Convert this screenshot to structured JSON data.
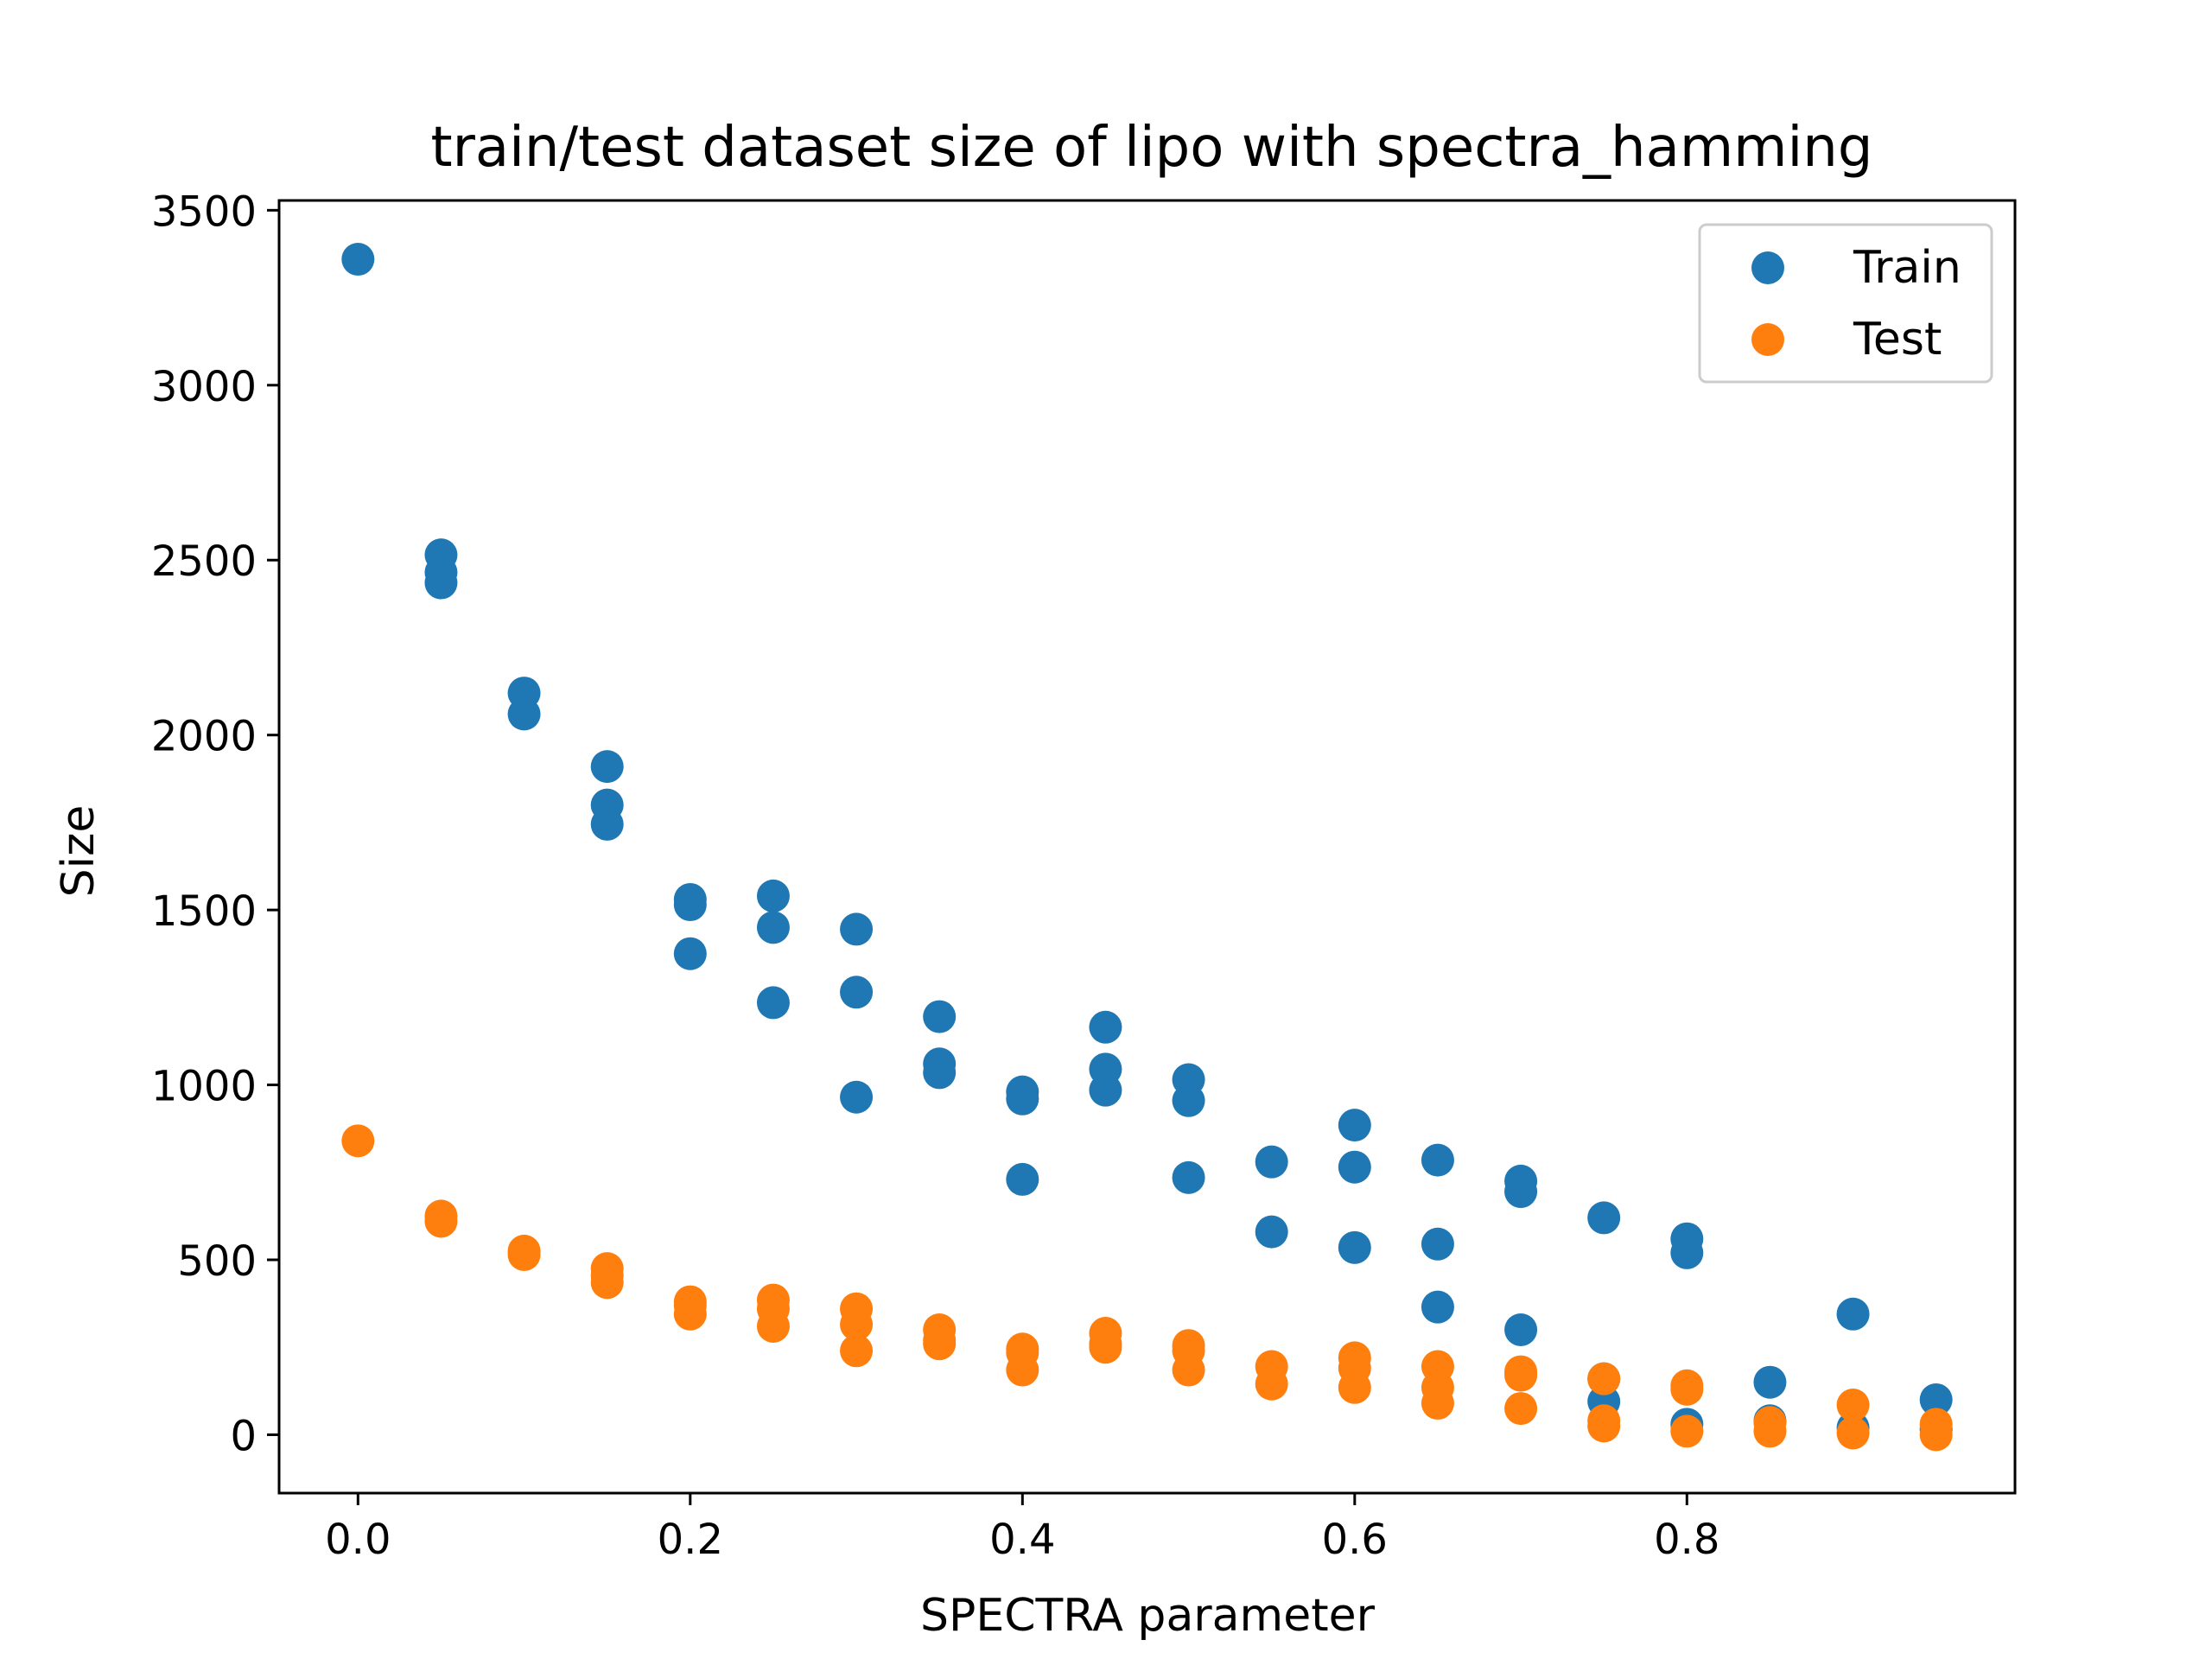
{
  "chart_data": {
    "type": "scatter",
    "title": "train/test dataset size of lipo with spectra_hamming",
    "xlabel": "SPECTRA parameter",
    "ylabel": "Size",
    "xlim": [
      -0.0475,
      0.9975
    ],
    "ylim": [
      -166.8,
      3528
    ],
    "xticks": [
      0.0,
      0.2,
      0.4,
      0.6,
      0.8
    ],
    "xtick_labels": [
      "0.0",
      "0.2",
      "0.4",
      "0.6",
      "0.8"
    ],
    "yticks": [
      0,
      500,
      1000,
      1500,
      2000,
      2500,
      3000,
      3500
    ],
    "ytick_labels": [
      "0",
      "500",
      "1000",
      "1500",
      "2000",
      "2500",
      "3000",
      "3500"
    ],
    "grid": false,
    "legend_position": "top-right",
    "series": [
      {
        "name": "Train",
        "color": "#1f77b4",
        "points": [
          [
            0.0,
            3360
          ],
          [
            0.05,
            2515
          ],
          [
            0.05,
            2465
          ],
          [
            0.05,
            2435
          ],
          [
            0.1,
            2120
          ],
          [
            0.1,
            2060
          ],
          [
            0.15,
            1910
          ],
          [
            0.15,
            1800
          ],
          [
            0.15,
            1745
          ],
          [
            0.2,
            1530
          ],
          [
            0.2,
            1515
          ],
          [
            0.2,
            1375
          ],
          [
            0.25,
            1540
          ],
          [
            0.25,
            1450
          ],
          [
            0.25,
            1235
          ],
          [
            0.3,
            1445
          ],
          [
            0.3,
            1265
          ],
          [
            0.3,
            965
          ],
          [
            0.35,
            1195
          ],
          [
            0.35,
            1060
          ],
          [
            0.35,
            1035
          ],
          [
            0.4,
            980
          ],
          [
            0.4,
            960
          ],
          [
            0.4,
            730
          ],
          [
            0.45,
            1165
          ],
          [
            0.45,
            1045
          ],
          [
            0.45,
            985
          ],
          [
            0.5,
            1015
          ],
          [
            0.5,
            955
          ],
          [
            0.5,
            735
          ],
          [
            0.55,
            780
          ],
          [
            0.55,
            580
          ],
          [
            0.6,
            885
          ],
          [
            0.6,
            765
          ],
          [
            0.6,
            535
          ],
          [
            0.65,
            785
          ],
          [
            0.65,
            545
          ],
          [
            0.65,
            365
          ],
          [
            0.7,
            725
          ],
          [
            0.7,
            695
          ],
          [
            0.7,
            300
          ],
          [
            0.75,
            620
          ],
          [
            0.75,
            160
          ],
          [
            0.75,
            95
          ],
          [
            0.8,
            560
          ],
          [
            0.8,
            520
          ],
          [
            0.8,
            30
          ],
          [
            0.85,
            150
          ],
          [
            0.85,
            40
          ],
          [
            0.9,
            345
          ],
          [
            0.9,
            20
          ],
          [
            0.95,
            100
          ],
          [
            0.95,
            15
          ]
        ]
      },
      {
        "name": "Test",
        "color": "#ff7f0e",
        "points": [
          [
            0.0,
            840
          ],
          [
            0.05,
            625
          ],
          [
            0.05,
            610
          ],
          [
            0.1,
            525
          ],
          [
            0.1,
            515
          ],
          [
            0.15,
            475
          ],
          [
            0.15,
            455
          ],
          [
            0.15,
            435
          ],
          [
            0.2,
            380
          ],
          [
            0.2,
            370
          ],
          [
            0.2,
            345
          ],
          [
            0.25,
            385
          ],
          [
            0.25,
            360
          ],
          [
            0.25,
            310
          ],
          [
            0.3,
            360
          ],
          [
            0.3,
            315
          ],
          [
            0.3,
            240
          ],
          [
            0.35,
            300
          ],
          [
            0.35,
            270
          ],
          [
            0.35,
            260
          ],
          [
            0.4,
            245
          ],
          [
            0.4,
            235
          ],
          [
            0.4,
            185
          ],
          [
            0.45,
            290
          ],
          [
            0.45,
            260
          ],
          [
            0.45,
            250
          ],
          [
            0.5,
            255
          ],
          [
            0.5,
            240
          ],
          [
            0.5,
            185
          ],
          [
            0.55,
            195
          ],
          [
            0.55,
            145
          ],
          [
            0.6,
            220
          ],
          [
            0.6,
            190
          ],
          [
            0.6,
            135
          ],
          [
            0.65,
            195
          ],
          [
            0.65,
            135
          ],
          [
            0.65,
            90
          ],
          [
            0.7,
            180
          ],
          [
            0.7,
            170
          ],
          [
            0.7,
            75
          ],
          [
            0.75,
            160
          ],
          [
            0.75,
            40
          ],
          [
            0.75,
            25
          ],
          [
            0.8,
            140
          ],
          [
            0.8,
            130
          ],
          [
            0.8,
            10
          ],
          [
            0.85,
            35
          ],
          [
            0.85,
            10
          ],
          [
            0.9,
            85
          ],
          [
            0.9,
            5
          ],
          [
            0.95,
            30
          ],
          [
            0.95,
            0
          ]
        ]
      }
    ]
  }
}
